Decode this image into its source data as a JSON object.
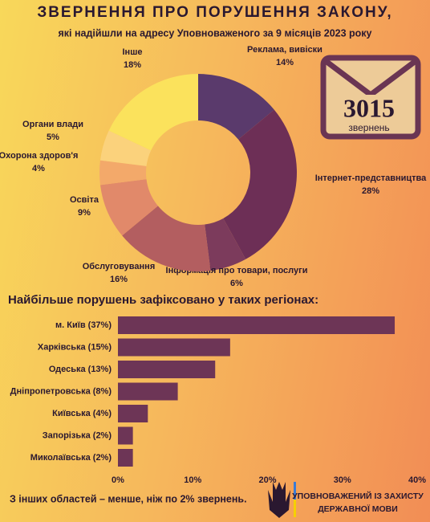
{
  "header": {
    "title": "ЗВЕРНЕННЯ ПРО ПОРУШЕННЯ ЗАКОНУ,",
    "subtitle": "які надійшли на адресу Уповноваженого за 9 місяців 2023 року"
  },
  "counter": {
    "number": 3015,
    "label": "звернень"
  },
  "chart_data": [
    {
      "type": "donut",
      "categories": [
        "Реклама, вивіски",
        "Інтернет-представництва",
        "Інформація про товари, послуги",
        "Обслуговування",
        "Освіта",
        "Охорона здоров'я",
        "Органи влади",
        "Інше"
      ],
      "values": [
        14,
        28,
        6,
        16,
        9,
        4,
        5,
        18
      ],
      "value_labels": [
        "14%",
        "28%",
        "6%",
        "16%",
        "9%",
        "4%",
        "5%",
        "18%"
      ],
      "colors": [
        "#5a3a6c",
        "#6d2f56",
        "#7c3b5c",
        "#b35e60",
        "#e1896a",
        "#f3a96a",
        "#fbd27c",
        "#fbe25c"
      ]
    },
    {
      "type": "hbar",
      "title": "Найбільше порушень зафіксовано у таких регіонах:",
      "categories": [
        "м. Київ (37%)",
        "Харківська (15%)",
        "Одеська (13%)",
        "Дніпропетровська (8%)",
        "Київська (4%)",
        "Запорізька (2%)",
        "Миколаївська (2%)"
      ],
      "values": [
        37,
        15,
        13,
        8,
        4,
        2,
        2
      ],
      "color": "#6d3556",
      "xlim": [
        0,
        40
      ],
      "xticks": [
        {
          "value": 0,
          "label": "0%"
        },
        {
          "value": 10,
          "label": "10%"
        },
        {
          "value": 20,
          "label": "20%"
        },
        {
          "value": 30,
          "label": "30%"
        },
        {
          "value": 40,
          "label": "40%"
        }
      ]
    }
  ],
  "footer": {
    "note": "З інших областей – менше, ніж по 2% звернень.",
    "org_line1": "УПОВНОВАЖЕНИЙ ІЗ ЗАХИСТУ",
    "org_line2": "ДЕРЖАВНОЇ МОВИ"
  }
}
